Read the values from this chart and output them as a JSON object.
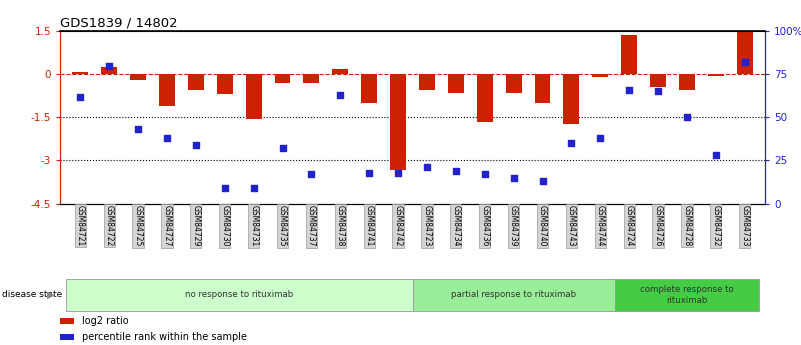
{
  "title": "GDS1839 / 14802",
  "samples": [
    "GSM84721",
    "GSM84722",
    "GSM84725",
    "GSM84727",
    "GSM84729",
    "GSM84730",
    "GSM84731",
    "GSM84735",
    "GSM84737",
    "GSM84738",
    "GSM84741",
    "GSM84742",
    "GSM84723",
    "GSM84734",
    "GSM84736",
    "GSM84739",
    "GSM84740",
    "GSM84743",
    "GSM84744",
    "GSM84724",
    "GSM84726",
    "GSM84728",
    "GSM84732",
    "GSM84733"
  ],
  "log2_ratio": [
    0.07,
    0.25,
    -0.2,
    -1.1,
    -0.55,
    -0.7,
    -1.55,
    -0.3,
    -0.3,
    0.18,
    -1.0,
    -3.35,
    -0.55,
    -0.65,
    -1.65,
    -0.65,
    -1.0,
    -1.75,
    -0.1,
    1.35,
    -0.45,
    -0.55,
    -0.05,
    1.45
  ],
  "percentile_rank": [
    62,
    80,
    43,
    38,
    34,
    9,
    9,
    32,
    17,
    63,
    18,
    18,
    21,
    19,
    17,
    15,
    13,
    35,
    38,
    66,
    65,
    50,
    28,
    82
  ],
  "groups": [
    {
      "label": "no response to rituximab",
      "start": 0,
      "end": 11,
      "color": "#ccffcc"
    },
    {
      "label": "partial response to rituximab",
      "start": 12,
      "end": 18,
      "color": "#99ee99"
    },
    {
      "label": "complete response to\nrituximab",
      "start": 19,
      "end": 23,
      "color": "#44cc44"
    }
  ],
  "bar_color": "#cc2200",
  "dot_color": "#2222cc",
  "dashed_line_color": "#cc2200",
  "dotted_line_color": "#000000",
  "ylim_left": [
    -4.5,
    1.5
  ],
  "ylim_right": [
    0,
    100
  ],
  "yticks_left": [
    1.5,
    0,
    -1.5,
    -3,
    -4.5
  ],
  "yticks_right": [
    100,
    75,
    50,
    25,
    0
  ],
  "ytick_labels_left": [
    "1.5",
    "0",
    "-1.5",
    "-3",
    "-4.5"
  ],
  "ytick_labels_right": [
    "100%",
    "75",
    "50",
    "25",
    "0"
  ],
  "disease_state_label": "disease state",
  "legend_items": [
    "log2 ratio",
    "percentile rank within the sample"
  ],
  "legend_colors": [
    "#cc2200",
    "#2222cc"
  ]
}
